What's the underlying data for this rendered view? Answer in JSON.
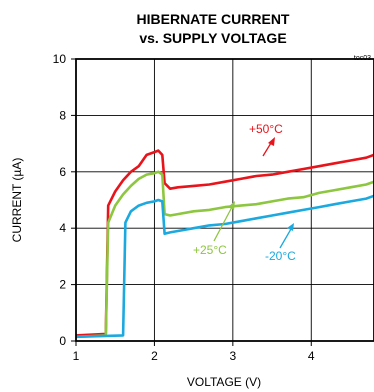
{
  "chart_data": {
    "type": "line",
    "title": "HIBERNATE CURRENT",
    "subtitle": "vs. SUPPLY VOLTAGE",
    "figure_code": "toc03",
    "xlabel": "VOLTAGE (V)",
    "ylabel": "CURRENT (µA)",
    "xlim": [
      1,
      4.8
    ],
    "ylim": [
      0,
      10
    ],
    "xticks": [
      "1",
      "2",
      "3",
      "4"
    ],
    "yticks": [
      "0",
      "2",
      "4",
      "6",
      "8",
      "10"
    ],
    "grid": true,
    "series": [
      {
        "name": "+50°C",
        "color": "#e8141c",
        "x": [
          1.0,
          1.38,
          1.41,
          1.5,
          1.6,
          1.7,
          1.8,
          1.9,
          2.0,
          2.05,
          2.1,
          2.13,
          2.2,
          2.3,
          2.5,
          2.7,
          2.9,
          3.1,
          3.3,
          3.5,
          3.7,
          3.9,
          4.1,
          4.3,
          4.5,
          4.7,
          4.8
        ],
        "y": [
          0.2,
          0.25,
          4.8,
          5.3,
          5.7,
          6.0,
          6.2,
          6.6,
          6.7,
          6.75,
          6.6,
          5.6,
          5.4,
          5.45,
          5.5,
          5.55,
          5.65,
          5.75,
          5.85,
          5.9,
          6.0,
          6.1,
          6.2,
          6.3,
          6.4,
          6.5,
          6.6
        ]
      },
      {
        "name": "+25°C",
        "color": "#8dc63f",
        "x": [
          1.0,
          1.38,
          1.41,
          1.5,
          1.6,
          1.7,
          1.8,
          1.9,
          2.0,
          2.05,
          2.1,
          2.13,
          2.2,
          2.3,
          2.5,
          2.7,
          2.9,
          3.1,
          3.3,
          3.5,
          3.7,
          3.9,
          4.1,
          4.3,
          4.5,
          4.7,
          4.8
        ],
        "y": [
          0.15,
          0.2,
          4.2,
          4.8,
          5.2,
          5.5,
          5.75,
          5.9,
          5.95,
          6.0,
          5.9,
          4.5,
          4.45,
          4.5,
          4.6,
          4.65,
          4.75,
          4.8,
          4.85,
          4.95,
          5.05,
          5.1,
          5.25,
          5.35,
          5.45,
          5.55,
          5.65
        ]
      },
      {
        "name": "-20°C",
        "color": "#1ba9df",
        "x": [
          1.0,
          1.6,
          1.63,
          1.7,
          1.8,
          1.9,
          2.0,
          2.05,
          2.1,
          2.13,
          2.2,
          2.3,
          2.5,
          2.7,
          2.9,
          3.1,
          3.3,
          3.5,
          3.7,
          3.9,
          4.1,
          4.3,
          4.5,
          4.7,
          4.8
        ],
        "y": [
          0.15,
          0.2,
          4.2,
          4.6,
          4.8,
          4.9,
          4.95,
          5.0,
          4.95,
          3.8,
          3.85,
          3.9,
          4.0,
          4.1,
          4.15,
          4.25,
          4.35,
          4.45,
          4.55,
          4.65,
          4.75,
          4.85,
          4.95,
          5.05,
          5.15
        ]
      }
    ],
    "annotations": [
      "+50°C",
      "+25°C",
      "-20°C"
    ]
  }
}
